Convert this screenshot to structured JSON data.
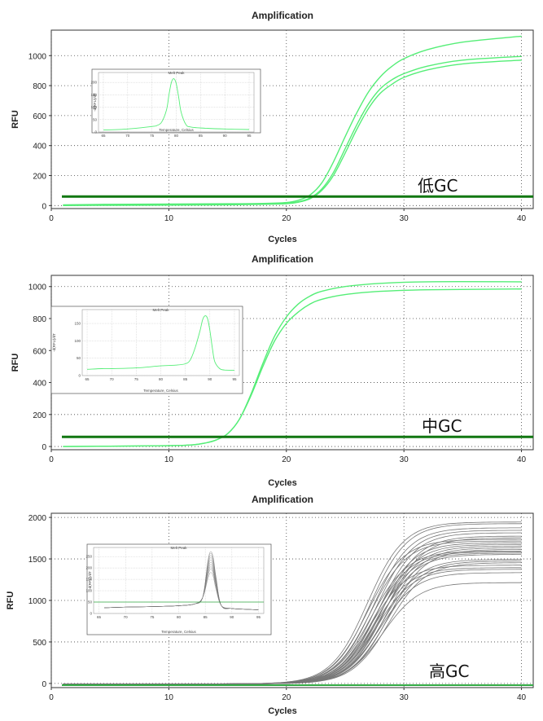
{
  "chart_data": [
    {
      "type": "line",
      "title": "Amplification",
      "xlabel": "Cycles",
      "ylabel": "RFU",
      "xlim": [
        0,
        41
      ],
      "ylim": [
        -20,
        1170
      ],
      "xticks": [
        0,
        10,
        20,
        30,
        40
      ],
      "yticks": [
        0,
        200,
        400,
        600,
        800,
        1000
      ],
      "grid": true,
      "annotation": "低GC",
      "line_color": "#55ee77",
      "threshold": {
        "value": 60,
        "color": "#117711"
      },
      "series": [
        {
          "x": [
            1,
            5,
            10,
            15,
            18,
            20,
            21,
            22,
            23,
            24,
            25,
            26,
            27,
            28,
            29,
            30,
            32,
            35,
            40
          ],
          "values": [
            5,
            8,
            10,
            12,
            14,
            20,
            35,
            70,
            150,
            290,
            460,
            620,
            760,
            860,
            930,
            980,
            1040,
            1090,
            1130
          ]
        },
        {
          "x": [
            1,
            5,
            10,
            15,
            18,
            20,
            21,
            22,
            23,
            24,
            25,
            26,
            27,
            28,
            29,
            30,
            32,
            35,
            40
          ],
          "values": [
            3,
            5,
            6,
            8,
            10,
            15,
            25,
            50,
            110,
            220,
            380,
            540,
            680,
            780,
            840,
            880,
            930,
            970,
            995
          ]
        },
        {
          "x": [
            1,
            5,
            10,
            15,
            18,
            20,
            21,
            22,
            23,
            24,
            25,
            26,
            27,
            28,
            29,
            30,
            32,
            35,
            40
          ],
          "values": [
            0,
            2,
            3,
            5,
            8,
            12,
            22,
            45,
            100,
            200,
            350,
            510,
            650,
            750,
            810,
            855,
            905,
            945,
            970
          ]
        }
      ],
      "inset": {
        "title": "Melt Peak",
        "xlabel": "Temperature, Celsius",
        "ylabel": "-d(RFU)/dT",
        "xlim": [
          64,
          96
        ],
        "ylim": [
          0,
          240
        ],
        "xticks": [
          65,
          70,
          75,
          80,
          85,
          90,
          95
        ],
        "yticks": [
          0,
          50,
          100,
          150,
          200
        ],
        "series": [
          {
            "x": [
              65,
              70,
              75,
              76,
              77,
              78,
              78.5,
              79,
              79.5,
              80,
              80.5,
              81,
              82,
              83,
              86,
              90,
              95
            ],
            "values": [
              8,
              12,
              22,
              26,
              40,
              90,
              150,
              200,
              215,
              195,
              140,
              80,
              30,
              20,
              15,
              12,
              10
            ]
          }
        ]
      }
    },
    {
      "type": "line",
      "title": "Amplification",
      "xlabel": "Cycles",
      "ylabel": "RFU",
      "xlim": [
        0,
        41
      ],
      "ylim": [
        -20,
        1070
      ],
      "xticks": [
        0,
        10,
        20,
        30,
        40
      ],
      "yticks": [
        0,
        200,
        400,
        600,
        800,
        1000
      ],
      "grid": true,
      "annotation": "中GC",
      "line_color": "#55ee77",
      "threshold": {
        "value": 60,
        "color": "#117711"
      },
      "series": [
        {
          "x": [
            1,
            5,
            10,
            12,
            13,
            14,
            15,
            16,
            17,
            18,
            19,
            20,
            21,
            22,
            23,
            25,
            28,
            32,
            40
          ],
          "values": [
            0,
            2,
            5,
            10,
            20,
            40,
            80,
            170,
            330,
            520,
            690,
            810,
            890,
            940,
            970,
            1000,
            1020,
            1030,
            1030
          ]
        },
        {
          "x": [
            1,
            5,
            10,
            12,
            13,
            14,
            15,
            16,
            17,
            18,
            19,
            20,
            21,
            22,
            23,
            25,
            28,
            32,
            40
          ],
          "values": [
            0,
            2,
            5,
            10,
            20,
            40,
            80,
            170,
            320,
            500,
            660,
            770,
            840,
            890,
            920,
            950,
            970,
            980,
            985
          ]
        }
      ],
      "inset": {
        "title": "Melt Peak",
        "xlabel": "Temperature, Celsius",
        "ylabel": "-d(RFU)/dT",
        "xlim": [
          64,
          96
        ],
        "ylim": [
          0,
          190
        ],
        "xticks": [
          65,
          70,
          75,
          80,
          85,
          90,
          95
        ],
        "yticks": [
          0,
          50,
          100,
          150
        ],
        "series": [
          {
            "x": [
              65,
              68,
              70,
              75,
              80,
              83,
              85,
              86,
              87,
              88,
              88.5,
              89,
              89.5,
              90,
              90.5,
              91,
              92,
              93,
              95
            ],
            "values": [
              18,
              20,
              20,
              22,
              28,
              30,
              34,
              45,
              80,
              130,
              160,
              172,
              165,
              130,
              80,
              40,
              20,
              16,
              15
            ]
          }
        ]
      }
    },
    {
      "type": "line",
      "title": "Amplification",
      "xlabel": "Cycles",
      "ylabel": "RFU",
      "xlim": [
        0,
        41
      ],
      "ylim": [
        -50,
        2050
      ],
      "xticks": [
        0,
        10,
        20,
        30,
        40
      ],
      "yticks": [
        0,
        500,
        1000,
        1500,
        2000
      ],
      "grid": true,
      "annotation": "高GC",
      "line_color": "#777777",
      "threshold": {
        "value": -20,
        "color": "#33aa44"
      },
      "plateaus": [
        1950,
        1930,
        1880,
        1850,
        1820,
        1780,
        1760,
        1740,
        1720,
        1700,
        1680,
        1660,
        1640,
        1620,
        1600,
        1590,
        1575,
        1560,
        1500,
        1480,
        1460,
        1430,
        1400,
        1380,
        1340,
        1220
      ],
      "inset": {
        "title": "Melt Peak",
        "xlabel": "Temperature, Celsius",
        "ylabel": "-d(RFU)/dT",
        "xlim": [
          64,
          96
        ],
        "ylim": [
          0,
          290
        ],
        "xticks": [
          65,
          70,
          75,
          80,
          85,
          90,
          95
        ],
        "yticks": [
          0,
          50,
          100,
          150,
          200,
          250
        ],
        "threshold": 50,
        "series_peaks": [
          180,
          195,
          205,
          215,
          225,
          235,
          245,
          255,
          265,
          272
        ]
      }
    }
  ]
}
